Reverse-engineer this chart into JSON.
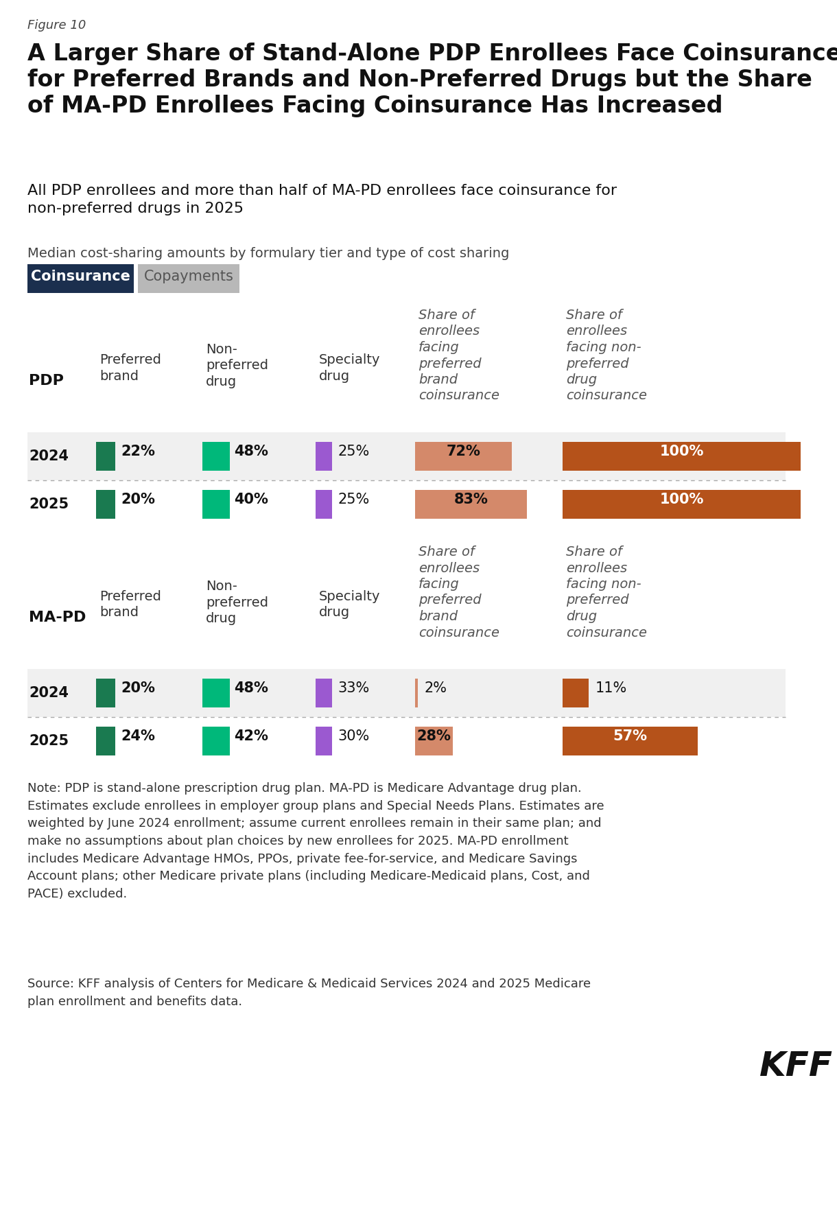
{
  "figure_label": "Figure 10",
  "title": "A Larger Share of Stand-Alone PDP Enrollees Face Coinsurance\nfor Preferred Brands and Non-Preferred Drugs but the Share\nof MA-PD Enrollees Facing Coinsurance Has Increased",
  "subtitle": "All PDP enrollees and more than half of MA-PD enrollees face coinsurance for\nnon-preferred drugs in 2025",
  "chart_label": "Median cost-sharing amounts by formulary tier and type of cost sharing",
  "tab_coinsurance": "Coinsurance",
  "tab_copayments": "Copayments",
  "tab_active_color": "#1b2f4e",
  "tab_inactive_color": "#b8b8b8",
  "col_headers_dark": [
    "Preferred\nbrand",
    "Non-\npreferred\ndrug",
    "Specialty\ndrug"
  ],
  "col_headers_italic": [
    "Share of\nenrollees\nfacing\npreferred\nbrand\ncoinsurance",
    "Share of\nenrollees\nfacing non-\npreferred\ndrug\ncoinsurance"
  ],
  "pdp_label": "PDP",
  "mapd_label": "MA-PD",
  "pdp_rows": [
    {
      "year": "2024",
      "pref_brand_pct_label": "22%",
      "non_pref_pct_label": "48%",
      "specialty_pct_label": "25%",
      "share_pref_pct": 72,
      "share_pref_pct_label": "72%",
      "share_nonpref_pct": 100,
      "share_nonpref_pct_label": "100%"
    },
    {
      "year": "2025",
      "pref_brand_pct_label": "20%",
      "non_pref_pct_label": "40%",
      "specialty_pct_label": "25%",
      "share_pref_pct": 83,
      "share_pref_pct_label": "83%",
      "share_nonpref_pct": 100,
      "share_nonpref_pct_label": "100%"
    }
  ],
  "mapd_rows": [
    {
      "year": "2024",
      "pref_brand_pct_label": "20%",
      "non_pref_pct_label": "48%",
      "specialty_pct_label": "33%",
      "share_pref_pct": 2,
      "share_pref_pct_label": "2%",
      "share_nonpref_pct": 11,
      "share_nonpref_pct_label": "11%"
    },
    {
      "year": "2025",
      "pref_brand_pct_label": "24%",
      "non_pref_pct_label": "42%",
      "specialty_pct_label": "30%",
      "share_pref_pct": 28,
      "share_pref_pct_label": "28%",
      "share_nonpref_pct": 57,
      "share_nonpref_pct_label": "57%"
    }
  ],
  "color_dark_green": "#1a7a50",
  "color_teal_green": "#00b87a",
  "color_purple": "#9b59d0",
  "color_orange_light": "#d4896a",
  "color_orange_dark": "#b5521a",
  "color_bg_gray": "#f0f0f0",
  "color_bg_white": "#ffffff",
  "note_text": "Note: PDP is stand-alone prescription drug plan. MA-PD is Medicare Advantage drug plan.\nEstimates exclude enrollees in employer group plans and Special Needs Plans. Estimates are\nweighted by June 2024 enrollment; assume current enrollees remain in their same plan; and\nmake no assumptions about plan choices by new enrollees for 2025. MA-PD enrollment\nincludes Medicare Advantage HMOs, PPOs, private fee-for-service, and Medicare Savings\nAccount plans; other Medicare private plans (including Medicare-Medicaid plans, Cost, and\nPACE) excluded.",
  "source_text": "Source: KFF analysis of Centers for Medicare & Medicaid Services 2024 and 2025 Medicare\nplan enrollment and benefits data.",
  "kff_label": "KFF"
}
